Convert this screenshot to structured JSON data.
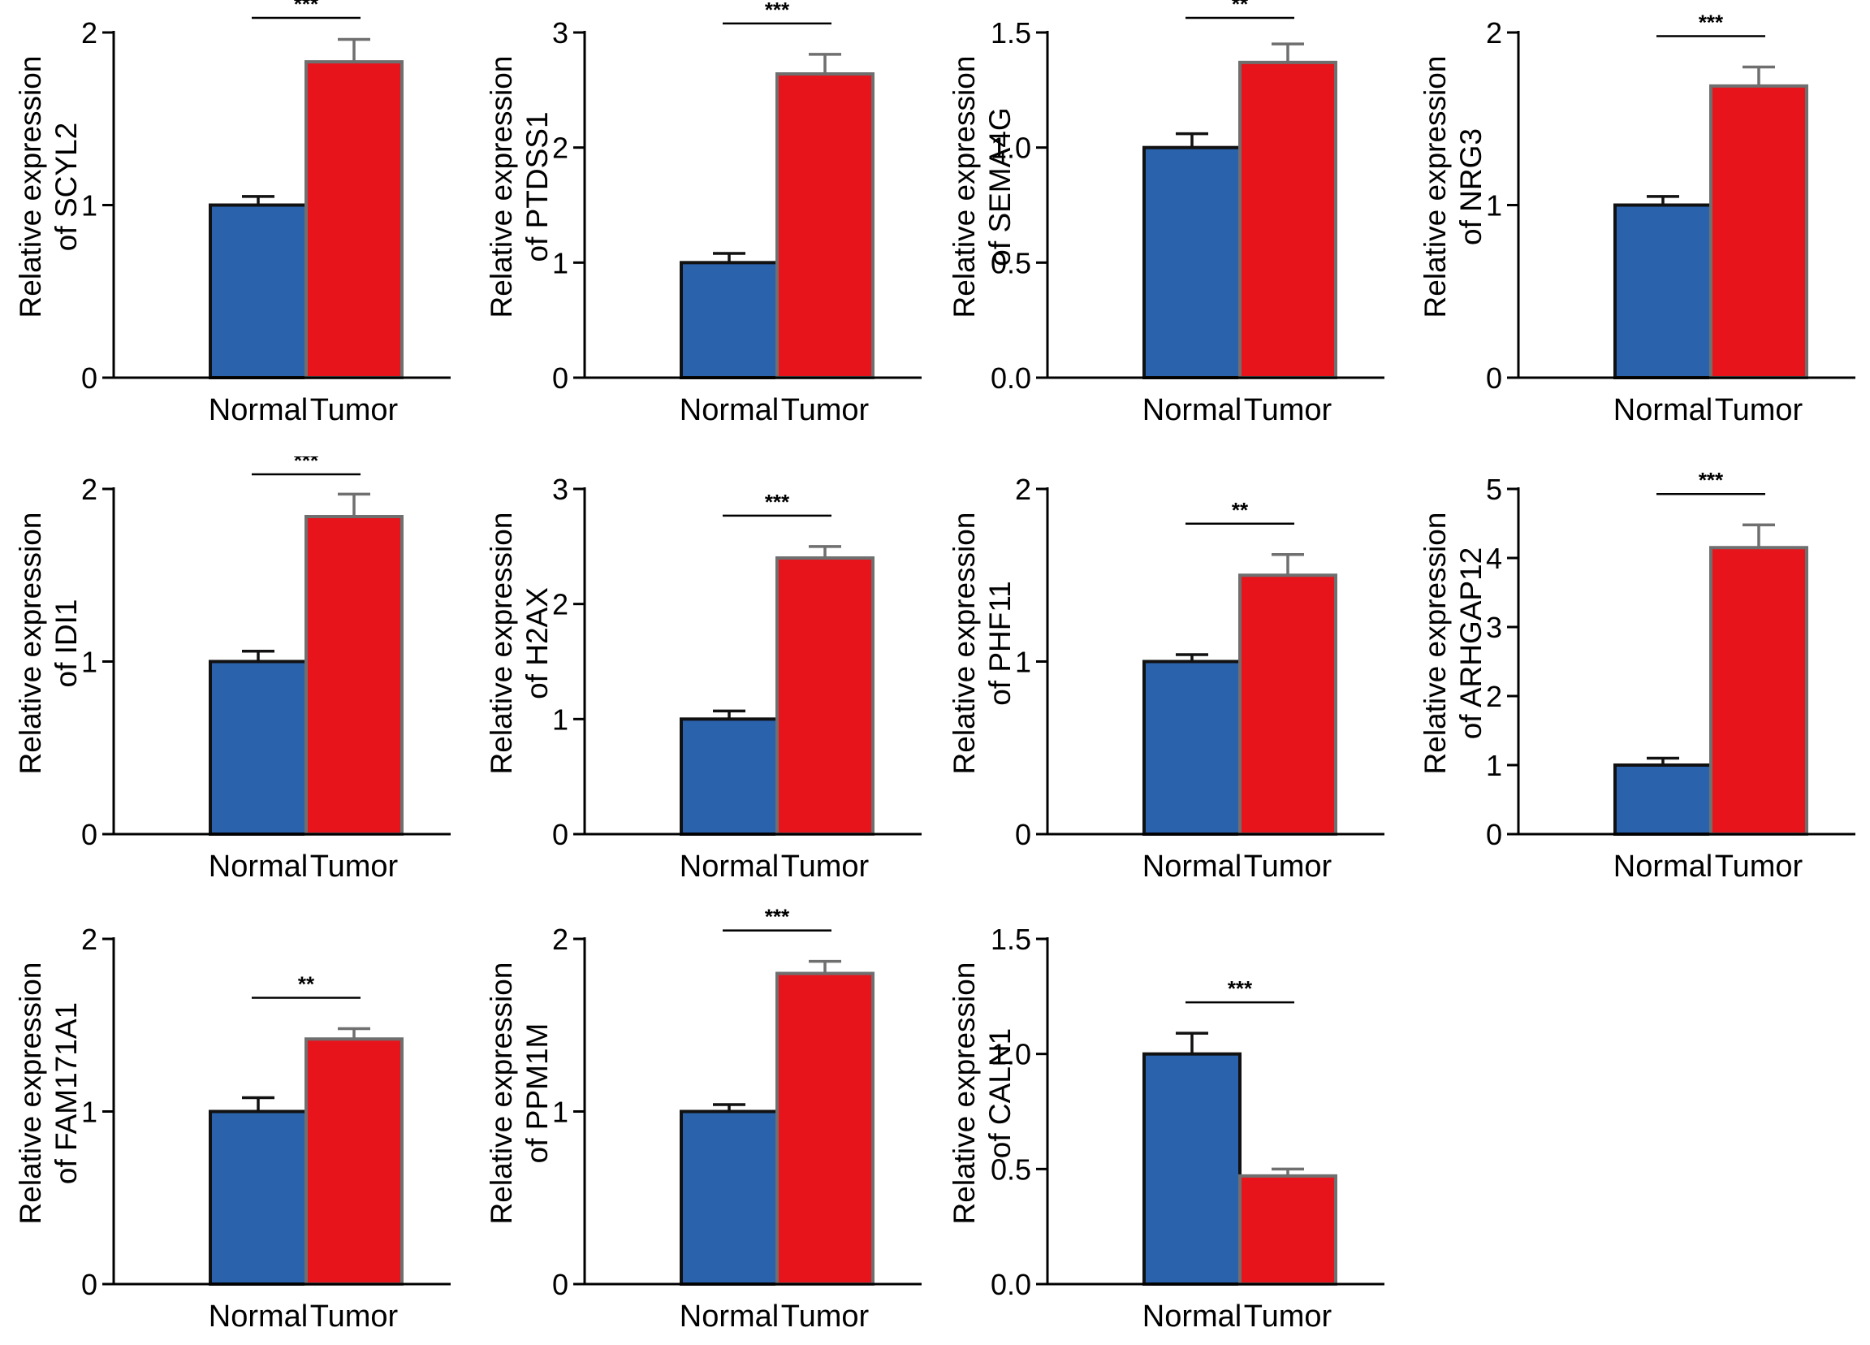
{
  "chart_data": [
    {
      "type": "bar",
      "title": "",
      "xlabel": "",
      "ylabel_line1": "Relative expression",
      "ylabel_line2": "of SCYL2",
      "categories": [
        "Normal",
        "Tumor"
      ],
      "values": [
        1.0,
        1.83
      ],
      "error": [
        0.05,
        0.13
      ],
      "ylim": [
        0,
        2
      ],
      "yticks": [
        "0",
        "1",
        "2"
      ],
      "significance": "***"
    },
    {
      "type": "bar",
      "title": "",
      "xlabel": "",
      "ylabel_line1": "Relative expression",
      "ylabel_line2": "of PTDSS1",
      "categories": [
        "Normal",
        "Tumor"
      ],
      "values": [
        1.0,
        2.64
      ],
      "error": [
        0.08,
        0.17
      ],
      "ylim": [
        0,
        3
      ],
      "yticks": [
        "0",
        "1",
        "2",
        "3"
      ],
      "significance": "***"
    },
    {
      "type": "bar",
      "title": "",
      "xlabel": "",
      "ylabel_line1": "Relative expression",
      "ylabel_line2": "of SEMA4G",
      "categories": [
        "Normal",
        "Tumor"
      ],
      "values": [
        1.0,
        1.37
      ],
      "error": [
        0.06,
        0.08
      ],
      "ylim": [
        0,
        1.5
      ],
      "yticks": [
        "0.0",
        "0.5",
        "1.0",
        "1.5"
      ],
      "significance": "**"
    },
    {
      "type": "bar",
      "title": "",
      "xlabel": "",
      "ylabel_line1": "Relative expression",
      "ylabel_line2": "of NRG3",
      "categories": [
        "Normal",
        "Tumor"
      ],
      "values": [
        1.0,
        1.69
      ],
      "error": [
        0.05,
        0.11
      ],
      "ylim": [
        0,
        2
      ],
      "yticks": [
        "0",
        "1",
        "2"
      ],
      "significance": "***"
    },
    {
      "type": "bar",
      "title": "",
      "xlabel": "",
      "ylabel_line1": "Relative expression",
      "ylabel_line2": "of IDI1",
      "categories": [
        "Normal",
        "Tumor"
      ],
      "values": [
        1.0,
        1.84
      ],
      "error": [
        0.06,
        0.13
      ],
      "ylim": [
        0,
        2
      ],
      "yticks": [
        "0",
        "1",
        "2"
      ],
      "significance": "***"
    },
    {
      "type": "bar",
      "title": "",
      "xlabel": "",
      "ylabel_line1": "Relative expression",
      "ylabel_line2": "of H2AX",
      "categories": [
        "Normal",
        "Tumor"
      ],
      "values": [
        1.0,
        2.4
      ],
      "error": [
        0.07,
        0.1
      ],
      "ylim": [
        0,
        3
      ],
      "yticks": [
        "0",
        "1",
        "2",
        "3"
      ],
      "significance": "***"
    },
    {
      "type": "bar",
      "title": "",
      "xlabel": "",
      "ylabel_line1": "Relative expression",
      "ylabel_line2": "of PHF11",
      "categories": [
        "Normal",
        "Tumor"
      ],
      "values": [
        1.0,
        1.5
      ],
      "error": [
        0.04,
        0.12
      ],
      "ylim": [
        0,
        2
      ],
      "yticks": [
        "0",
        "1",
        "2"
      ],
      "significance": "**"
    },
    {
      "type": "bar",
      "title": "",
      "xlabel": "",
      "ylabel_line1": "Relative expression",
      "ylabel_line2": "of ARHGAP12",
      "categories": [
        "Normal",
        "Tumor"
      ],
      "values": [
        1.0,
        4.15
      ],
      "error": [
        0.1,
        0.33
      ],
      "ylim": [
        0,
        5
      ],
      "yticks": [
        "0",
        "1",
        "2",
        "3",
        "4",
        "5"
      ],
      "significance": "***"
    },
    {
      "type": "bar",
      "title": "",
      "xlabel": "",
      "ylabel_line1": "Relative expression",
      "ylabel_line2": "of FAM171A1",
      "categories": [
        "Normal",
        "Tumor"
      ],
      "values": [
        1.0,
        1.42
      ],
      "error": [
        0.08,
        0.06
      ],
      "ylim": [
        0,
        2
      ],
      "yticks": [
        "0",
        "1",
        "2"
      ],
      "significance": "**"
    },
    {
      "type": "bar",
      "title": "",
      "xlabel": "",
      "ylabel_line1": "Relative expression",
      "ylabel_line2": "of PPM1M",
      "categories": [
        "Normal",
        "Tumor"
      ],
      "values": [
        1.0,
        1.8
      ],
      "error": [
        0.04,
        0.07
      ],
      "ylim": [
        0,
        2
      ],
      "yticks": [
        "0",
        "1",
        "2"
      ],
      "significance": "***"
    },
    {
      "type": "bar",
      "title": "",
      "xlabel": "",
      "ylabel_line1": "Relative expression",
      "ylabel_line2": "of CALN1",
      "categories": [
        "Normal",
        "Tumor"
      ],
      "values": [
        1.0,
        0.47
      ],
      "error": [
        0.09,
        0.03
      ],
      "ylim": [
        0,
        1.5
      ],
      "yticks": [
        "0.0",
        "0.5",
        "1.0",
        "1.5"
      ],
      "significance": "***"
    }
  ],
  "colors": {
    "normal_bar": "#2a62ac",
    "tumor_bar": "#e8141c",
    "normal_edge": "#111111",
    "tumor_edge": "#6f6f6f",
    "axis": "#000000"
  }
}
